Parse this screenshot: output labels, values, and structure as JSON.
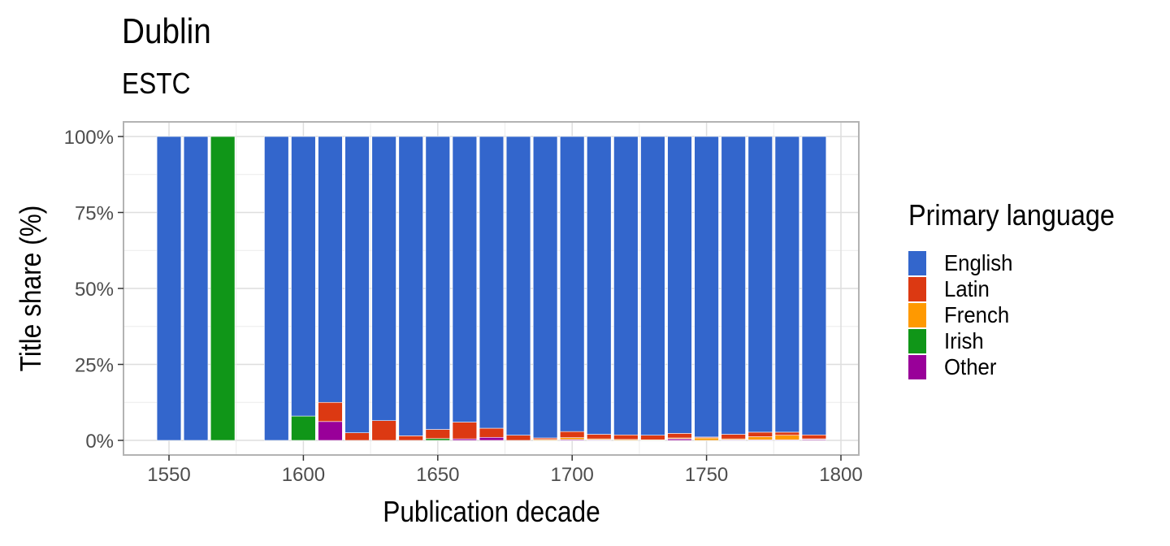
{
  "chart_data": {
    "type": "bar",
    "stacked": true,
    "normalized": true,
    "title": "Dublin",
    "subtitle": "ESTC",
    "xlabel": "Publication decade",
    "ylabel": "Title share (%)",
    "xlim": [
      1535,
      1800
    ],
    "ylim": [
      0,
      100
    ],
    "x_ticks": [
      "1550",
      "1600",
      "1650",
      "1700",
      "1750",
      "1800"
    ],
    "y_ticks": [
      "0%",
      "25%",
      "50%",
      "75%",
      "100%"
    ],
    "grid": true,
    "legend_title": "Primary language",
    "legend_position": "right",
    "x": [
      1550,
      1560,
      1570,
      1590,
      1600,
      1610,
      1620,
      1630,
      1640,
      1650,
      1660,
      1670,
      1680,
      1690,
      1700,
      1710,
      1720,
      1730,
      1740,
      1750,
      1760,
      1770,
      1780,
      1790
    ],
    "series": [
      {
        "name": "Other",
        "color": "#990099",
        "values": [
          0,
          0,
          0,
          0,
          0,
          6.2,
          0,
          0,
          0,
          0,
          0.5,
          1.0,
          0,
          0,
          0.3,
          0.2,
          0,
          0,
          0.5,
          0,
          0.2,
          0.2,
          0.2,
          0.3
        ]
      },
      {
        "name": "Irish",
        "color": "#109618",
        "values": [
          0,
          0,
          100,
          0,
          8.0,
          0,
          0,
          0,
          0,
          0.6,
          0,
          0,
          0,
          0,
          0,
          0,
          0,
          0,
          0,
          0,
          0,
          0,
          0,
          0
        ]
      },
      {
        "name": "French",
        "color": "#ff9900",
        "values": [
          0,
          0,
          0,
          0,
          0,
          0,
          0,
          0,
          0,
          0,
          0,
          0,
          0,
          0.3,
          0.6,
          0.3,
          0.3,
          0.2,
          0.3,
          0.8,
          0.3,
          1.0,
          1.5,
          0.2
        ]
      },
      {
        "name": "Latin",
        "color": "#dc3912",
        "values": [
          0,
          0,
          0,
          0,
          0,
          6.3,
          2.5,
          6.5,
          1.5,
          3.0,
          5.5,
          3.0,
          1.7,
          0.5,
          2.0,
          1.5,
          1.5,
          1.5,
          1.5,
          0.3,
          1.5,
          1.5,
          1.0,
          1.3
        ]
      },
      {
        "name": "English",
        "color": "#3366cc",
        "values": [
          100,
          100,
          0,
          100,
          92.0,
          87.5,
          97.5,
          93.5,
          98.5,
          96.4,
          94.0,
          96.0,
          98.3,
          99.2,
          97.1,
          98.0,
          98.2,
          98.3,
          97.7,
          98.9,
          98.0,
          97.3,
          97.3,
          98.2
        ]
      }
    ],
    "legend_entries": [
      "English",
      "Latin",
      "French",
      "Irish",
      "Other"
    ]
  }
}
